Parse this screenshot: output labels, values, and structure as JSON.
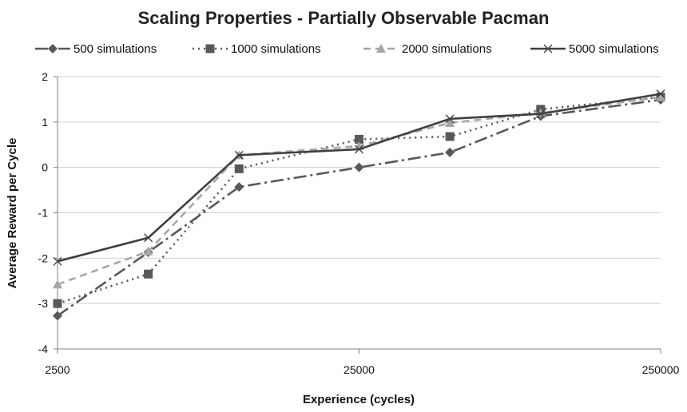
{
  "chart_data": {
    "type": "line",
    "title": "Scaling Properties - Partially Observable Pacman",
    "xlabel": "Experience (cycles)",
    "ylabel": "Average Reward per Cycle",
    "x_scale": "log",
    "x": [
      2500,
      5000,
      10000,
      25000,
      50000,
      100000,
      250000
    ],
    "xlim": [
      2500,
      250000
    ],
    "x_ticks": [
      2500,
      25000,
      250000
    ],
    "x_tick_labels": [
      "2500",
      "25000",
      "250000"
    ],
    "ylim": [
      -4,
      2
    ],
    "y_ticks": [
      -4,
      -3,
      -2,
      -1,
      0,
      1,
      2
    ],
    "y_tick_labels": [
      "-4",
      "-3",
      "-2",
      "-1",
      "0",
      "1",
      "2"
    ],
    "grid": "horizontal",
    "legend_position": "top",
    "series": [
      {
        "name": "500 simulations",
        "values": [
          -3.27,
          -1.87,
          -0.43,
          0.0,
          0.33,
          1.13,
          1.49
        ],
        "color": "#595959",
        "dash": "16,5,3,5",
        "marker": "diamond"
      },
      {
        "name": "1000 simulations",
        "values": [
          -3.0,
          -2.35,
          -0.03,
          0.62,
          0.68,
          1.28,
          1.55
        ],
        "color": "#595959",
        "dash": "2,5",
        "marker": "square"
      },
      {
        "name": "2000 simulations",
        "values": [
          -2.58,
          -1.85,
          0.27,
          0.47,
          0.98,
          1.2,
          1.55
        ],
        "color": "#a6a6a6",
        "dash": "9,6",
        "marker": "triangle"
      },
      {
        "name": "5000 simulations",
        "values": [
          -2.07,
          -1.55,
          0.27,
          0.4,
          1.07,
          1.18,
          1.62
        ],
        "color": "#404040",
        "dash": "",
        "marker": "x"
      }
    ]
  }
}
